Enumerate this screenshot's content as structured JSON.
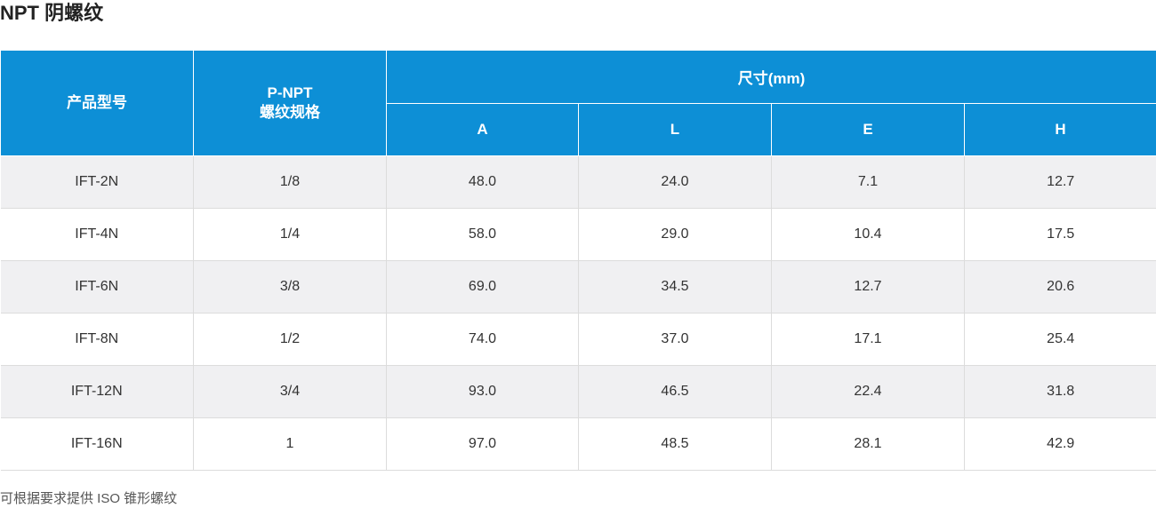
{
  "title": "NPT 阴螺纹",
  "table": {
    "header": {
      "model": "产品型号",
      "spec_line1": "P-NPT",
      "spec_line2": "螺纹规格",
      "dims_group": "尺寸(mm)",
      "dims": [
        "A",
        "L",
        "E",
        "H"
      ]
    },
    "rows": [
      {
        "model": "IFT-2N",
        "spec": "1/8",
        "A": "48.0",
        "L": "24.0",
        "E": "7.1",
        "H": "12.7"
      },
      {
        "model": "IFT-4N",
        "spec": "1/4",
        "A": "58.0",
        "L": "29.0",
        "E": "10.4",
        "H": "17.5"
      },
      {
        "model": "IFT-6N",
        "spec": "3/8",
        "A": "69.0",
        "L": "34.5",
        "E": "12.7",
        "H": "20.6"
      },
      {
        "model": "IFT-8N",
        "spec": "1/2",
        "A": "74.0",
        "L": "37.0",
        "E": "17.1",
        "H": "25.4"
      },
      {
        "model": "IFT-12N",
        "spec": "3/4",
        "A": "93.0",
        "L": "46.5",
        "E": "22.4",
        "H": "31.8"
      },
      {
        "model": "IFT-16N",
        "spec": "1",
        "A": "97.0",
        "L": "48.5",
        "E": "28.1",
        "H": "42.9"
      }
    ]
  },
  "footnote": "可根据要求提供 ISO 锥形螺纹",
  "colors": {
    "header_bg": "#0d8fd6",
    "row_alt_bg": "#f0f0f2"
  }
}
